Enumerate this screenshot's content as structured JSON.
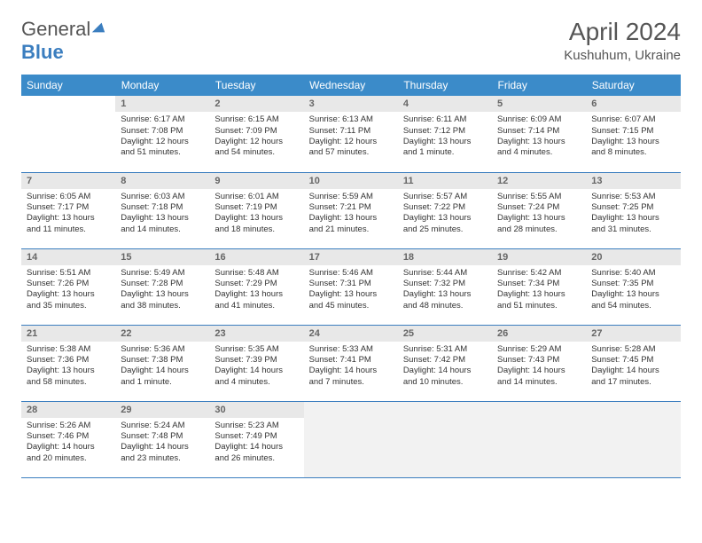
{
  "brand": {
    "part1": "General",
    "part2": "Blue"
  },
  "title": "April 2024",
  "location": "Kushuhum, Ukraine",
  "colors": {
    "header_bg": "#3b8bc9",
    "border": "#3b7ebf",
    "daynum_bg": "#e8e8e8",
    "text": "#333333",
    "muted": "#666666"
  },
  "weekdays": [
    "Sunday",
    "Monday",
    "Tuesday",
    "Wednesday",
    "Thursday",
    "Friday",
    "Saturday"
  ],
  "weeks": [
    [
      {
        "n": "",
        "sr": "",
        "ss": "",
        "dl1": "",
        "dl2": "",
        "empty": true
      },
      {
        "n": "1",
        "sr": "Sunrise: 6:17 AM",
        "ss": "Sunset: 7:08 PM",
        "dl1": "Daylight: 12 hours",
        "dl2": "and 51 minutes."
      },
      {
        "n": "2",
        "sr": "Sunrise: 6:15 AM",
        "ss": "Sunset: 7:09 PM",
        "dl1": "Daylight: 12 hours",
        "dl2": "and 54 minutes."
      },
      {
        "n": "3",
        "sr": "Sunrise: 6:13 AM",
        "ss": "Sunset: 7:11 PM",
        "dl1": "Daylight: 12 hours",
        "dl2": "and 57 minutes."
      },
      {
        "n": "4",
        "sr": "Sunrise: 6:11 AM",
        "ss": "Sunset: 7:12 PM",
        "dl1": "Daylight: 13 hours",
        "dl2": "and 1 minute."
      },
      {
        "n": "5",
        "sr": "Sunrise: 6:09 AM",
        "ss": "Sunset: 7:14 PM",
        "dl1": "Daylight: 13 hours",
        "dl2": "and 4 minutes."
      },
      {
        "n": "6",
        "sr": "Sunrise: 6:07 AM",
        "ss": "Sunset: 7:15 PM",
        "dl1": "Daylight: 13 hours",
        "dl2": "and 8 minutes."
      }
    ],
    [
      {
        "n": "7",
        "sr": "Sunrise: 6:05 AM",
        "ss": "Sunset: 7:17 PM",
        "dl1": "Daylight: 13 hours",
        "dl2": "and 11 minutes."
      },
      {
        "n": "8",
        "sr": "Sunrise: 6:03 AM",
        "ss": "Sunset: 7:18 PM",
        "dl1": "Daylight: 13 hours",
        "dl2": "and 14 minutes."
      },
      {
        "n": "9",
        "sr": "Sunrise: 6:01 AM",
        "ss": "Sunset: 7:19 PM",
        "dl1": "Daylight: 13 hours",
        "dl2": "and 18 minutes."
      },
      {
        "n": "10",
        "sr": "Sunrise: 5:59 AM",
        "ss": "Sunset: 7:21 PM",
        "dl1": "Daylight: 13 hours",
        "dl2": "and 21 minutes."
      },
      {
        "n": "11",
        "sr": "Sunrise: 5:57 AM",
        "ss": "Sunset: 7:22 PM",
        "dl1": "Daylight: 13 hours",
        "dl2": "and 25 minutes."
      },
      {
        "n": "12",
        "sr": "Sunrise: 5:55 AM",
        "ss": "Sunset: 7:24 PM",
        "dl1": "Daylight: 13 hours",
        "dl2": "and 28 minutes."
      },
      {
        "n": "13",
        "sr": "Sunrise: 5:53 AM",
        "ss": "Sunset: 7:25 PM",
        "dl1": "Daylight: 13 hours",
        "dl2": "and 31 minutes."
      }
    ],
    [
      {
        "n": "14",
        "sr": "Sunrise: 5:51 AM",
        "ss": "Sunset: 7:26 PM",
        "dl1": "Daylight: 13 hours",
        "dl2": "and 35 minutes."
      },
      {
        "n": "15",
        "sr": "Sunrise: 5:49 AM",
        "ss": "Sunset: 7:28 PM",
        "dl1": "Daylight: 13 hours",
        "dl2": "and 38 minutes."
      },
      {
        "n": "16",
        "sr": "Sunrise: 5:48 AM",
        "ss": "Sunset: 7:29 PM",
        "dl1": "Daylight: 13 hours",
        "dl2": "and 41 minutes."
      },
      {
        "n": "17",
        "sr": "Sunrise: 5:46 AM",
        "ss": "Sunset: 7:31 PM",
        "dl1": "Daylight: 13 hours",
        "dl2": "and 45 minutes."
      },
      {
        "n": "18",
        "sr": "Sunrise: 5:44 AM",
        "ss": "Sunset: 7:32 PM",
        "dl1": "Daylight: 13 hours",
        "dl2": "and 48 minutes."
      },
      {
        "n": "19",
        "sr": "Sunrise: 5:42 AM",
        "ss": "Sunset: 7:34 PM",
        "dl1": "Daylight: 13 hours",
        "dl2": "and 51 minutes."
      },
      {
        "n": "20",
        "sr": "Sunrise: 5:40 AM",
        "ss": "Sunset: 7:35 PM",
        "dl1": "Daylight: 13 hours",
        "dl2": "and 54 minutes."
      }
    ],
    [
      {
        "n": "21",
        "sr": "Sunrise: 5:38 AM",
        "ss": "Sunset: 7:36 PM",
        "dl1": "Daylight: 13 hours",
        "dl2": "and 58 minutes."
      },
      {
        "n": "22",
        "sr": "Sunrise: 5:36 AM",
        "ss": "Sunset: 7:38 PM",
        "dl1": "Daylight: 14 hours",
        "dl2": "and 1 minute."
      },
      {
        "n": "23",
        "sr": "Sunrise: 5:35 AM",
        "ss": "Sunset: 7:39 PM",
        "dl1": "Daylight: 14 hours",
        "dl2": "and 4 minutes."
      },
      {
        "n": "24",
        "sr": "Sunrise: 5:33 AM",
        "ss": "Sunset: 7:41 PM",
        "dl1": "Daylight: 14 hours",
        "dl2": "and 7 minutes."
      },
      {
        "n": "25",
        "sr": "Sunrise: 5:31 AM",
        "ss": "Sunset: 7:42 PM",
        "dl1": "Daylight: 14 hours",
        "dl2": "and 10 minutes."
      },
      {
        "n": "26",
        "sr": "Sunrise: 5:29 AM",
        "ss": "Sunset: 7:43 PM",
        "dl1": "Daylight: 14 hours",
        "dl2": "and 14 minutes."
      },
      {
        "n": "27",
        "sr": "Sunrise: 5:28 AM",
        "ss": "Sunset: 7:45 PM",
        "dl1": "Daylight: 14 hours",
        "dl2": "and 17 minutes."
      }
    ],
    [
      {
        "n": "28",
        "sr": "Sunrise: 5:26 AM",
        "ss": "Sunset: 7:46 PM",
        "dl1": "Daylight: 14 hours",
        "dl2": "and 20 minutes."
      },
      {
        "n": "29",
        "sr": "Sunrise: 5:24 AM",
        "ss": "Sunset: 7:48 PM",
        "dl1": "Daylight: 14 hours",
        "dl2": "and 23 minutes."
      },
      {
        "n": "30",
        "sr": "Sunrise: 5:23 AM",
        "ss": "Sunset: 7:49 PM",
        "dl1": "Daylight: 14 hours",
        "dl2": "and 26 minutes."
      },
      {
        "n": "",
        "sr": "",
        "ss": "",
        "dl1": "",
        "dl2": "",
        "trail": true
      },
      {
        "n": "",
        "sr": "",
        "ss": "",
        "dl1": "",
        "dl2": "",
        "trail": true
      },
      {
        "n": "",
        "sr": "",
        "ss": "",
        "dl1": "",
        "dl2": "",
        "trail": true
      },
      {
        "n": "",
        "sr": "",
        "ss": "",
        "dl1": "",
        "dl2": "",
        "trail": true
      }
    ]
  ]
}
